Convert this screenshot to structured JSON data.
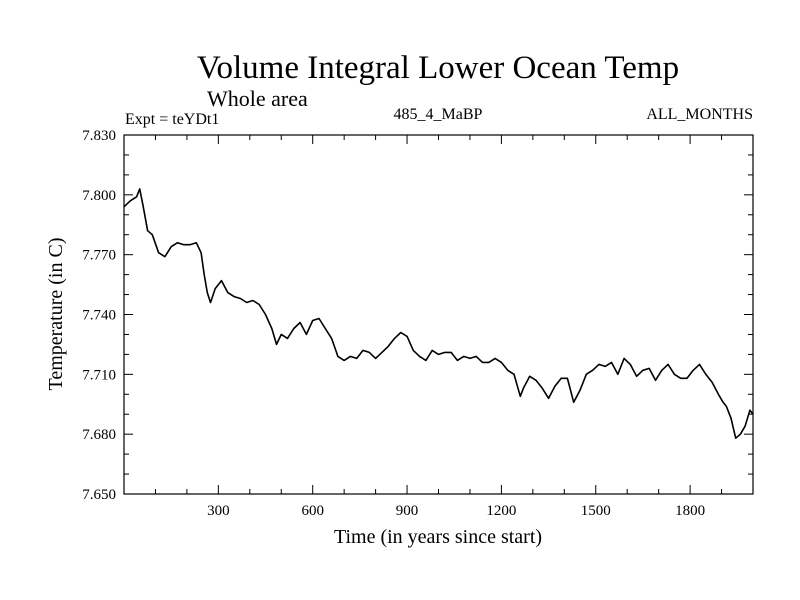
{
  "chart_data": {
    "type": "line",
    "title": "Volume Integral Lower Ocean Temp",
    "subtitle": "Whole area",
    "left_label": "Expt = teYDt1",
    "center_label": "485_4_MaBP",
    "right_label": "ALL_MONTHS",
    "xlabel": "Time (in years since start)",
    "ylabel": "Temperature (in C)",
    "xlim": [
      0,
      2000
    ],
    "ylim": [
      7.65,
      7.83
    ],
    "x_ticks": [
      300,
      600,
      900,
      1200,
      1500,
      1800
    ],
    "x_tick_labels": [
      "300",
      "600",
      "900",
      "1200",
      "1500",
      "1800"
    ],
    "y_ticks": [
      7.65,
      7.68,
      7.71,
      7.74,
      7.77,
      7.8,
      7.83
    ],
    "y_tick_labels": [
      "7.650",
      "7.680",
      "7.710",
      "7.740",
      "7.770",
      "7.800",
      "7.830"
    ],
    "grid": false,
    "series": [
      {
        "name": "teYDt1",
        "color": "#000000",
        "x": [
          0,
          20,
          40,
          50,
          60,
          75,
          90,
          110,
          130,
          150,
          170,
          190,
          210,
          230,
          245,
          255,
          265,
          275,
          290,
          310,
          330,
          350,
          370,
          390,
          410,
          430,
          450,
          470,
          485,
          500,
          520,
          540,
          560,
          580,
          600,
          620,
          640,
          660,
          680,
          700,
          720,
          740,
          760,
          780,
          800,
          820,
          840,
          860,
          880,
          900,
          920,
          940,
          960,
          980,
          1000,
          1020,
          1040,
          1060,
          1080,
          1100,
          1120,
          1140,
          1160,
          1180,
          1200,
          1220,
          1240,
          1260,
          1270,
          1290,
          1310,
          1330,
          1350,
          1370,
          1390,
          1410,
          1430,
          1450,
          1470,
          1490,
          1510,
          1530,
          1550,
          1570,
          1590,
          1610,
          1630,
          1650,
          1670,
          1690,
          1710,
          1730,
          1750,
          1770,
          1790,
          1810,
          1830,
          1850,
          1870,
          1890,
          1905,
          1915,
          1930,
          1945,
          1960,
          1975,
          1990,
          2000
        ],
        "values": [
          7.794,
          7.797,
          7.799,
          7.803,
          7.795,
          7.782,
          7.78,
          7.771,
          7.769,
          7.774,
          7.776,
          7.775,
          7.775,
          7.776,
          7.771,
          7.76,
          7.751,
          7.746,
          7.753,
          7.757,
          7.751,
          7.749,
          7.748,
          7.746,
          7.747,
          7.745,
          7.74,
          7.733,
          7.725,
          7.73,
          7.728,
          7.733,
          7.736,
          7.73,
          7.737,
          7.738,
          7.733,
          7.728,
          7.719,
          7.717,
          7.719,
          7.718,
          7.722,
          7.721,
          7.718,
          7.721,
          7.724,
          7.728,
          7.731,
          7.729,
          7.722,
          7.719,
          7.717,
          7.722,
          7.72,
          7.721,
          7.721,
          7.717,
          7.719,
          7.718,
          7.719,
          7.716,
          7.716,
          7.718,
          7.716,
          7.712,
          7.71,
          7.699,
          7.703,
          7.709,
          7.707,
          7.703,
          7.698,
          7.704,
          7.708,
          7.708,
          7.696,
          7.702,
          7.71,
          7.712,
          7.715,
          7.714,
          7.716,
          7.71,
          7.718,
          7.715,
          7.709,
          7.712,
          7.713,
          7.707,
          7.712,
          7.715,
          7.71,
          7.708,
          7.708,
          7.712,
          7.715,
          7.71,
          7.706,
          7.7,
          7.696,
          7.694,
          7.688,
          7.678,
          7.68,
          7.684,
          7.692,
          7.69
        ]
      }
    ]
  }
}
